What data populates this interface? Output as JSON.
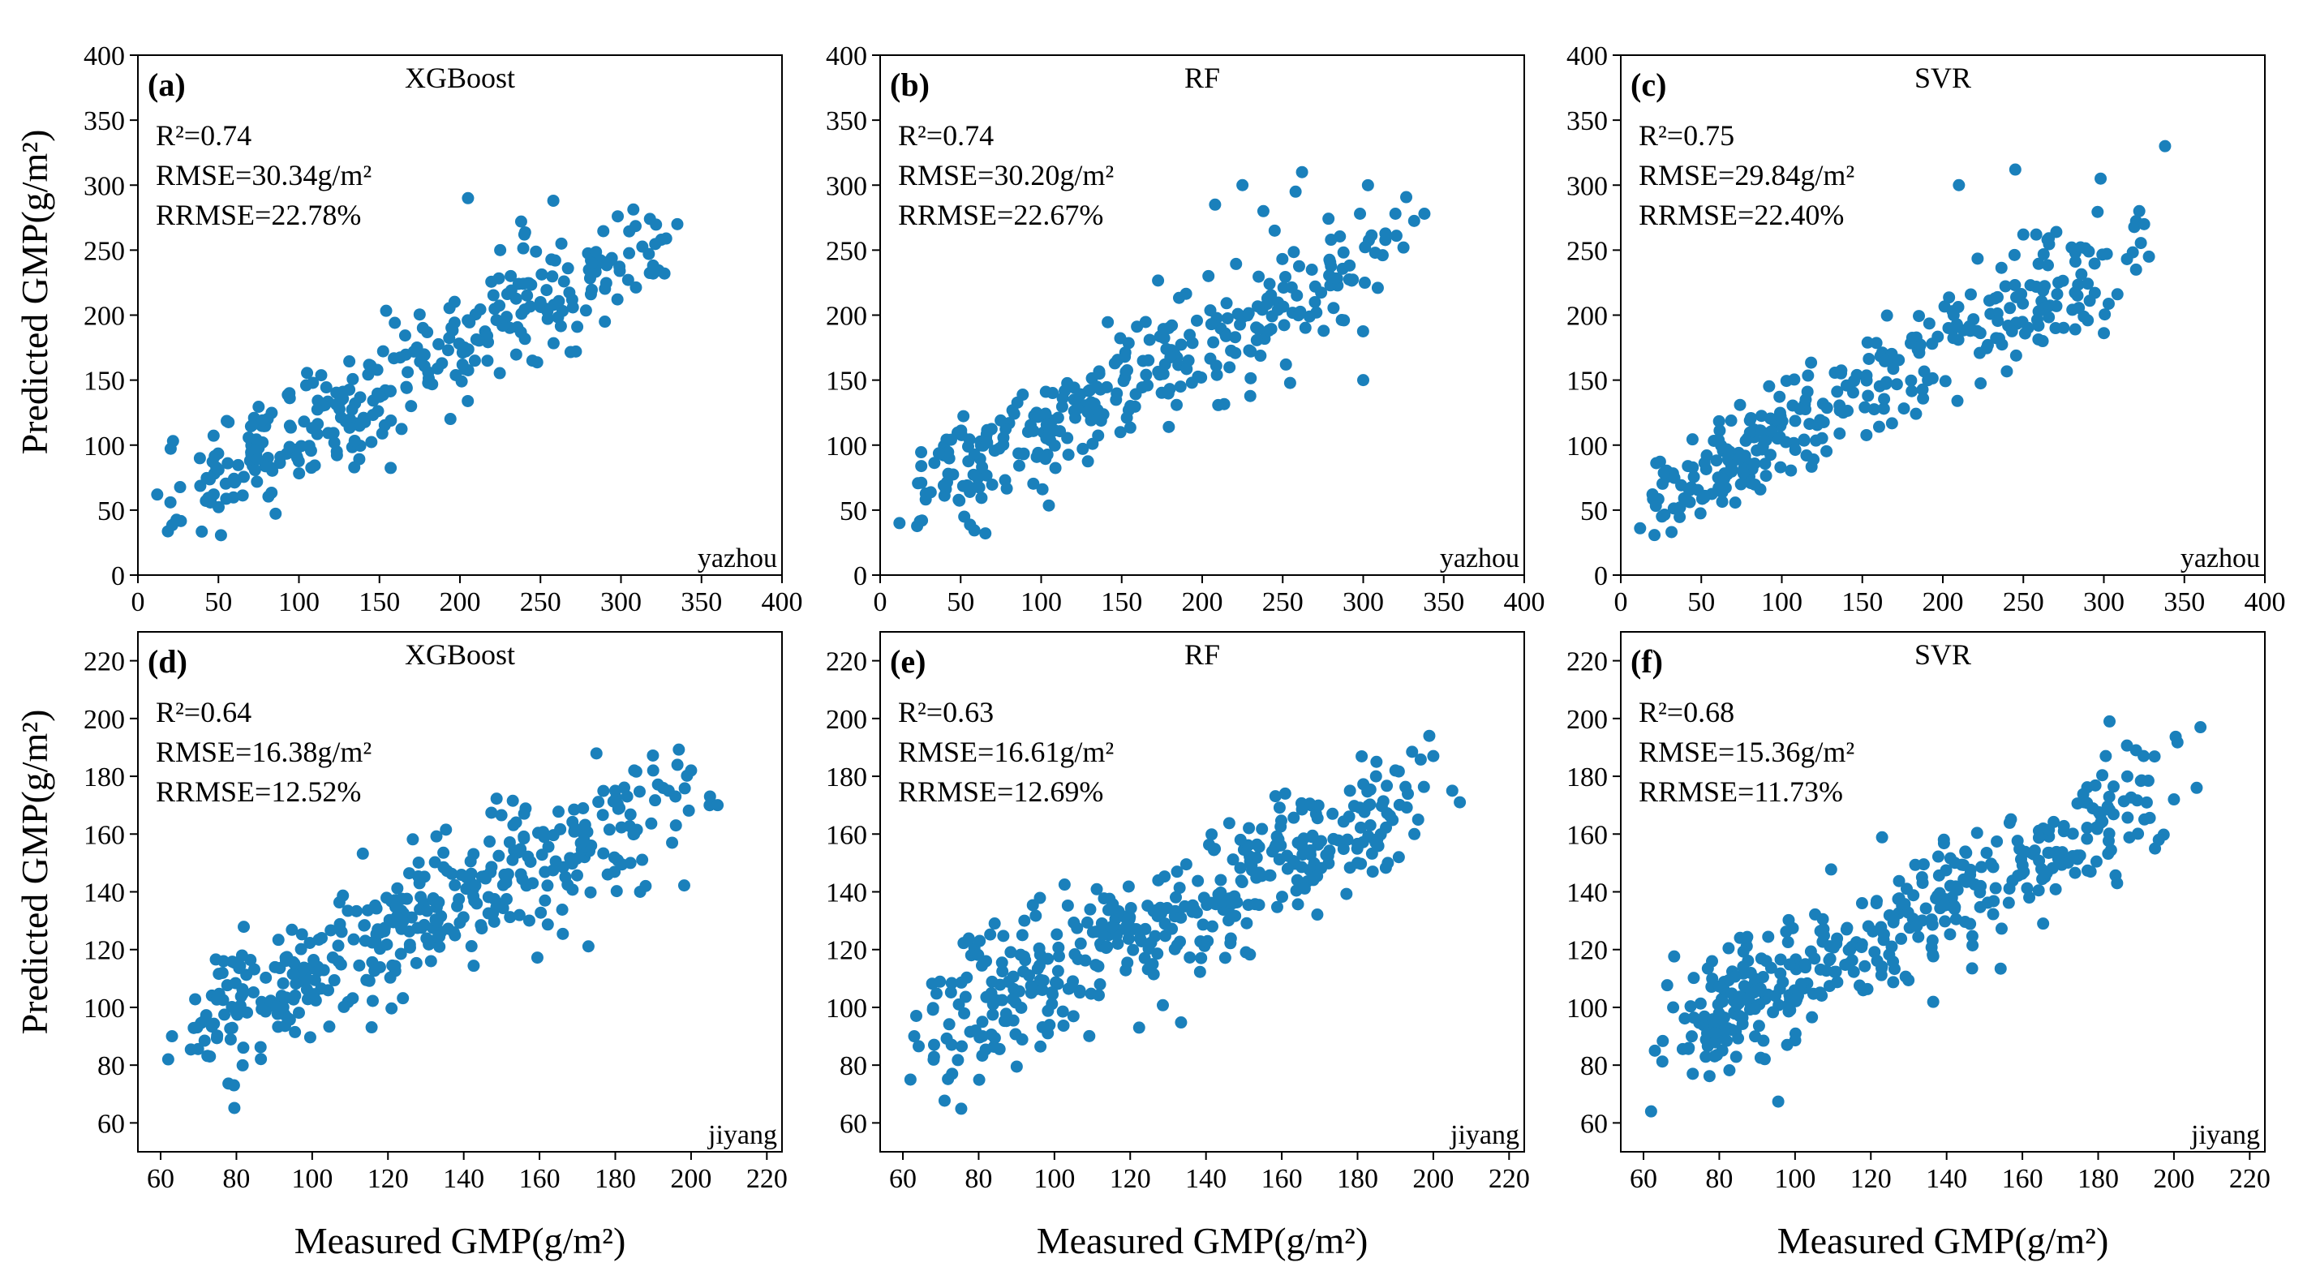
{
  "colors": {
    "point": "#1a80bb",
    "axis": "#000000",
    "background": "#ffffff"
  },
  "figure": {
    "xlabel": "Measured GMP(g/m²)",
    "ylabel": "Predicted GMP(g/m²)"
  },
  "rows": [
    {
      "site": "yazhou",
      "xlim": [
        0,
        400
      ],
      "ylim": [
        0,
        400
      ],
      "xticks": [
        "0",
        "50",
        "100",
        "150",
        "200",
        "250",
        "300",
        "350",
        "400"
      ],
      "yticks": [
        "0",
        "50",
        "100",
        "150",
        "200",
        "250",
        "300",
        "350",
        "400"
      ]
    },
    {
      "site": "jiyang",
      "xlim": [
        54,
        224
      ],
      "ylim": [
        50,
        230
      ],
      "xticks": [
        "60",
        "80",
        "100",
        "120",
        "140",
        "160",
        "180",
        "200",
        "220"
      ],
      "yticks": [
        "60",
        "80",
        "100",
        "120",
        "140",
        "160",
        "180",
        "200",
        "220"
      ]
    }
  ],
  "chart_data": [
    {
      "type": "scatter",
      "panel": "(a)",
      "title": "XGBoost",
      "site": "yazhou",
      "row": 0,
      "col": 0,
      "stats": [
        "R²=0.74",
        "RMSE=30.34g/m²",
        "RRMSE=22.78%"
      ],
      "xlim": [
        0,
        400
      ],
      "ylim": [
        0,
        400
      ],
      "slope": 0.66,
      "intercept": 45,
      "noise": 22,
      "seed": 11,
      "n": 300,
      "xrange": [
        12,
        338
      ],
      "points": [
        [
          12,
          62
        ],
        [
          205,
          290
        ],
        [
          258,
          288
        ],
        [
          298,
          276
        ],
        [
          318,
          274
        ],
        [
          320,
          232
        ],
        [
          327,
          232
        ],
        [
          335,
          270
        ],
        [
          325,
          258
        ],
        [
          282,
          240
        ],
        [
          272,
          172
        ],
        [
          290,
          195
        ],
        [
          240,
          262
        ],
        [
          238,
          272
        ],
        [
          225,
          250
        ],
        [
          250,
          210
        ],
        [
          263,
          255
        ],
        [
          245,
          165
        ]
      ]
    },
    {
      "type": "scatter",
      "panel": "(b)",
      "title": "RF",
      "site": "yazhou",
      "row": 0,
      "col": 1,
      "stats": [
        "R²=0.74",
        "RMSE=30.20g/m²",
        "RRMSE=22.67%"
      ],
      "xlim": [
        0,
        400
      ],
      "ylim": [
        0,
        400
      ],
      "slope": 0.66,
      "intercept": 45,
      "noise": 22,
      "seed": 23,
      "n": 300,
      "xrange": [
        12,
        338
      ],
      "points": [
        [
          12,
          40
        ],
        [
          26,
          42
        ],
        [
          262,
          310
        ],
        [
          258,
          295
        ],
        [
          225,
          300
        ],
        [
          208,
          285
        ],
        [
          298,
          278
        ],
        [
          320,
          278
        ],
        [
          325,
          252
        ],
        [
          338,
          278
        ],
        [
          280,
          258
        ],
        [
          288,
          196
        ],
        [
          245,
          265
        ],
        [
          252,
          162
        ],
        [
          238,
          280
        ],
        [
          270,
          210
        ],
        [
          300,
          150
        ]
      ]
    },
    {
      "type": "scatter",
      "panel": "(c)",
      "title": "SVR",
      "site": "yazhou",
      "row": 0,
      "col": 2,
      "stats": [
        "R²=0.75",
        "RMSE=29.84g/m²",
        "RRMSE=22.40%"
      ],
      "xlim": [
        0,
        400
      ],
      "ylim": [
        0,
        400
      ],
      "slope": 0.67,
      "intercept": 44,
      "noise": 21,
      "seed": 37,
      "n": 300,
      "xrange": [
        12,
        338
      ],
      "points": [
        [
          12,
          36
        ],
        [
          338,
          330
        ],
        [
          245,
          312
        ],
        [
          298,
          305
        ],
        [
          322,
          280
        ],
        [
          325,
          270
        ],
        [
          320,
          235
        ],
        [
          328,
          245
        ],
        [
          250,
          262
        ],
        [
          258,
          262
        ],
        [
          265,
          258
        ],
        [
          280,
          252
        ],
        [
          290,
          196
        ],
        [
          270,
          190
        ],
        [
          262,
          180
        ],
        [
          235,
          182
        ],
        [
          210,
          300
        ]
      ]
    },
    {
      "type": "scatter",
      "panel": "(d)",
      "title": "XGBoost",
      "site": "jiyang",
      "row": 1,
      "col": 0,
      "stats": [
        "R²=0.64",
        "RMSE=16.38g/m²",
        "RRMSE=12.52%"
      ],
      "xlim": [
        54,
        224
      ],
      "ylim": [
        50,
        230
      ],
      "slope": 0.62,
      "intercept": 50,
      "noise": 12,
      "seed": 53,
      "n": 380,
      "xrange": [
        62,
        207
      ],
      "points": [
        [
          62,
          82
        ],
        [
          63,
          90
        ],
        [
          73,
          83
        ],
        [
          200,
          182
        ],
        [
          205,
          173
        ],
        [
          207,
          170
        ],
        [
          195,
          157
        ],
        [
          196,
          163
        ],
        [
          190,
          182
        ],
        [
          185,
          182
        ],
        [
          180,
          175
        ],
        [
          178,
          146
        ],
        [
          184,
          150
        ],
        [
          188,
          142
        ]
      ]
    },
    {
      "type": "scatter",
      "panel": "(e)",
      "title": "RF",
      "site": "jiyang",
      "row": 1,
      "col": 1,
      "stats": [
        "R²=0.63",
        "RMSE=16.61g/m²",
        "RRMSE=12.69%"
      ],
      "xlim": [
        54,
        224
      ],
      "ylim": [
        50,
        230
      ],
      "slope": 0.62,
      "intercept": 50,
      "noise": 12,
      "seed": 71,
      "n": 380,
      "xrange": [
        62,
        207
      ],
      "points": [
        [
          62,
          75
        ],
        [
          63,
          90
        ],
        [
          73,
          77
        ],
        [
          200,
          187
        ],
        [
          205,
          175
        ],
        [
          207,
          171
        ],
        [
          195,
          160
        ],
        [
          196,
          165
        ],
        [
          190,
          182
        ],
        [
          185,
          185
        ],
        [
          180,
          150
        ],
        [
          178,
          175
        ],
        [
          184,
          147
        ],
        [
          188,
          150
        ]
      ]
    },
    {
      "type": "scatter",
      "panel": "(f)",
      "title": "SVR",
      "site": "jiyang",
      "row": 1,
      "col": 2,
      "stats": [
        "R²=0.68",
        "RMSE=15.36g/m²",
        "RRMSE=11.73%"
      ],
      "xlim": [
        54,
        224
      ],
      "ylim": [
        50,
        230
      ],
      "slope": 0.68,
      "intercept": 42,
      "noise": 11,
      "seed": 89,
      "n": 380,
      "xrange": [
        62,
        207
      ],
      "points": [
        [
          62,
          64
        ],
        [
          63,
          85
        ],
        [
          73,
          77
        ],
        [
          207,
          197
        ],
        [
          206,
          176
        ],
        [
          200,
          172
        ],
        [
          195,
          155
        ],
        [
          196,
          158
        ],
        [
          192,
          187
        ],
        [
          190,
          189
        ],
        [
          183,
          199
        ],
        [
          182,
          187
        ],
        [
          185,
          143
        ],
        [
          178,
          147
        ]
      ]
    }
  ]
}
